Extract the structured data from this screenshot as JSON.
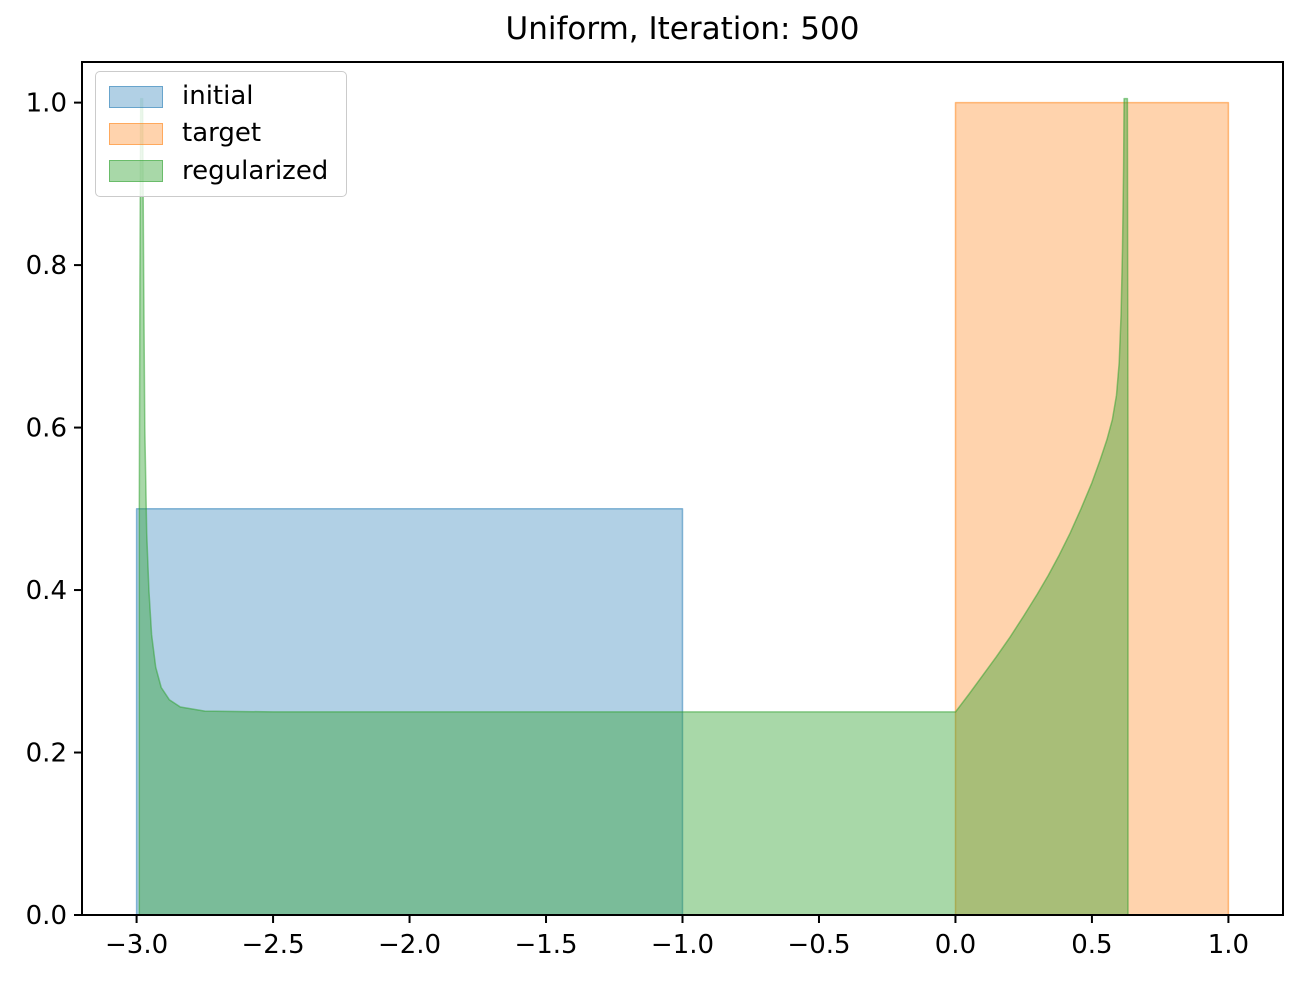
{
  "chart_data": {
    "type": "area",
    "title": "Uniform, Iteration: 500",
    "xlabel": "",
    "ylabel": "",
    "grid": false,
    "background": "#ffffff",
    "axes_color": "#000000",
    "legend_position": "upper left",
    "xlim": [
      -3.2,
      1.2
    ],
    "ylim": [
      0,
      1.05
    ],
    "xticks": {
      "values": [
        -3.0,
        -2.5,
        -2.0,
        -1.5,
        -1.0,
        -0.5,
        0.0,
        0.5,
        1.0
      ],
      "labels": [
        "−3.0",
        "−2.5",
        "−2.0",
        "−1.5",
        "−1.0",
        "−0.5",
        "0.0",
        "0.5",
        "1.0"
      ]
    },
    "yticks": {
      "values": [
        0.0,
        0.2,
        0.4,
        0.6,
        0.8,
        1.0
      ],
      "labels": [
        "0.0",
        "0.2",
        "0.4",
        "0.6",
        "0.8",
        "1.0"
      ]
    },
    "series": [
      {
        "name": "initial",
        "shape": "uniform density on [-3, -1] with height 0.5",
        "color": "#1f77b4",
        "fill": "rgba(31,119,180,0.35)",
        "edge": "rgba(31,119,180,0.5)",
        "points": [
          [
            -3.0,
            0
          ],
          [
            -3.0,
            0.5
          ],
          [
            -1.0,
            0.5
          ],
          [
            -1.0,
            0
          ]
        ]
      },
      {
        "name": "target",
        "shape": "uniform density on [0, 1] with height 1.0",
        "color": "#ff7f0e",
        "fill": "rgba(255,127,14,0.34)",
        "edge": "rgba(255,127,14,0.5)",
        "points": [
          [
            0.0,
            0
          ],
          [
            0.0,
            1.0
          ],
          [
            1.0,
            1.0
          ],
          [
            1.0,
            0
          ]
        ]
      },
      {
        "name": "regularized",
        "shape": "density ~0.25 on [-3, 0.63] with boundary spikes to ~1.0 at x~-2.98 and x~0.62",
        "color": "#2ca02c",
        "fill": "rgba(44,160,44,0.41)",
        "edge": "rgba(44,160,44,0.5)",
        "points": [
          [
            -2.99,
            0
          ],
          [
            -2.99,
            0.5
          ],
          [
            -2.988,
            0.78
          ],
          [
            -2.985,
            1.005
          ],
          [
            -2.978,
            1.005
          ],
          [
            -2.974,
            0.78
          ],
          [
            -2.97,
            0.6
          ],
          [
            -2.963,
            0.47
          ],
          [
            -2.955,
            0.4
          ],
          [
            -2.945,
            0.345
          ],
          [
            -2.93,
            0.305
          ],
          [
            -2.91,
            0.28
          ],
          [
            -2.88,
            0.265
          ],
          [
            -2.84,
            0.256
          ],
          [
            -2.75,
            0.251
          ],
          [
            -2.5,
            0.25
          ],
          [
            -2.0,
            0.25
          ],
          [
            -1.5,
            0.25
          ],
          [
            -1.0,
            0.25
          ],
          [
            -0.5,
            0.25
          ],
          [
            0.0,
            0.25
          ],
          [
            0.05,
            0.272
          ],
          [
            0.1,
            0.295
          ],
          [
            0.15,
            0.318
          ],
          [
            0.2,
            0.342
          ],
          [
            0.25,
            0.368
          ],
          [
            0.3,
            0.395
          ],
          [
            0.34,
            0.418
          ],
          [
            0.38,
            0.443
          ],
          [
            0.42,
            0.47
          ],
          [
            0.46,
            0.5
          ],
          [
            0.5,
            0.532
          ],
          [
            0.53,
            0.56
          ],
          [
            0.555,
            0.585
          ],
          [
            0.575,
            0.61
          ],
          [
            0.59,
            0.64
          ],
          [
            0.6,
            0.68
          ],
          [
            0.607,
            0.74
          ],
          [
            0.612,
            0.82
          ],
          [
            0.616,
            0.92
          ],
          [
            0.618,
            1.005
          ],
          [
            0.63,
            1.005
          ],
          [
            0.632,
            0.55
          ],
          [
            0.632,
            0
          ]
        ]
      }
    ]
  },
  "legend": {
    "items": [
      "initial",
      "target",
      "regularized"
    ]
  }
}
